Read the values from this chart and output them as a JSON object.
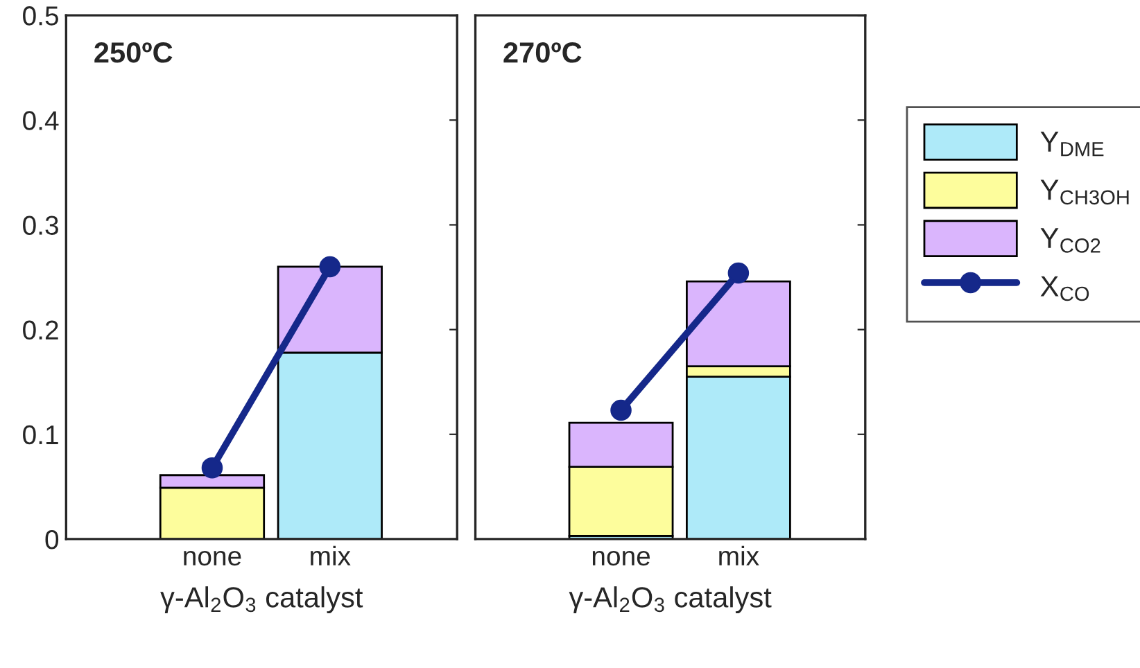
{
  "chart_data": [
    {
      "type": "bar",
      "stacked": true,
      "annotations": [
        "250ºC"
      ],
      "categories": [
        "none",
        "mix"
      ],
      "xlabel": "γ-Al$_{2}$O$_{3}$ catalyst",
      "ylim": [
        0,
        0.5
      ],
      "yticks": [
        0,
        0.1,
        0.2,
        0.3,
        0.4,
        0.5
      ],
      "grid": false,
      "legend": false,
      "series": [
        {
          "color": "#aeeaf9",
          "values": [
            0,
            0.178
          ]
        },
        {
          "color": "#fdfd9c",
          "values": [
            0.049,
            0
          ]
        },
        {
          "color": "#dab5fd",
          "values": [
            0.012,
            0.082
          ]
        },
        {
          "type": "line",
          "marker": "circle",
          "color": "#15288a",
          "values": [
            0.068,
            0.26
          ]
        }
      ]
    },
    {
      "type": "bar",
      "stacked": true,
      "annotations": [
        "270ºC"
      ],
      "categories": [
        "none",
        "mix"
      ],
      "xlabel": "γ-Al$_{2}$O$_{3}$ catalyst",
      "ylim": [
        0,
        0.5
      ],
      "yticks": [
        0,
        0.1,
        0.2,
        0.3,
        0.4,
        0.5
      ],
      "tick_labels": "x",
      "grid": false,
      "legend": "right",
      "series": [
        {
          "name": "Y$_{DME}$",
          "color": "#aeeaf9",
          "values": [
            0.003,
            0.155
          ]
        },
        {
          "name": "Y$_{CH3OH}$",
          "color": "#fdfd9c",
          "values": [
            0.066,
            0.01
          ]
        },
        {
          "name": "Y$_{CO2}$",
          "color": "#dab5fd",
          "values": [
            0.042,
            0.081
          ]
        },
        {
          "name": "X$_{CO}$",
          "type": "line",
          "marker": "circle",
          "color": "#15288a",
          "values": [
            0.123,
            0.254
          ]
        }
      ]
    }
  ]
}
